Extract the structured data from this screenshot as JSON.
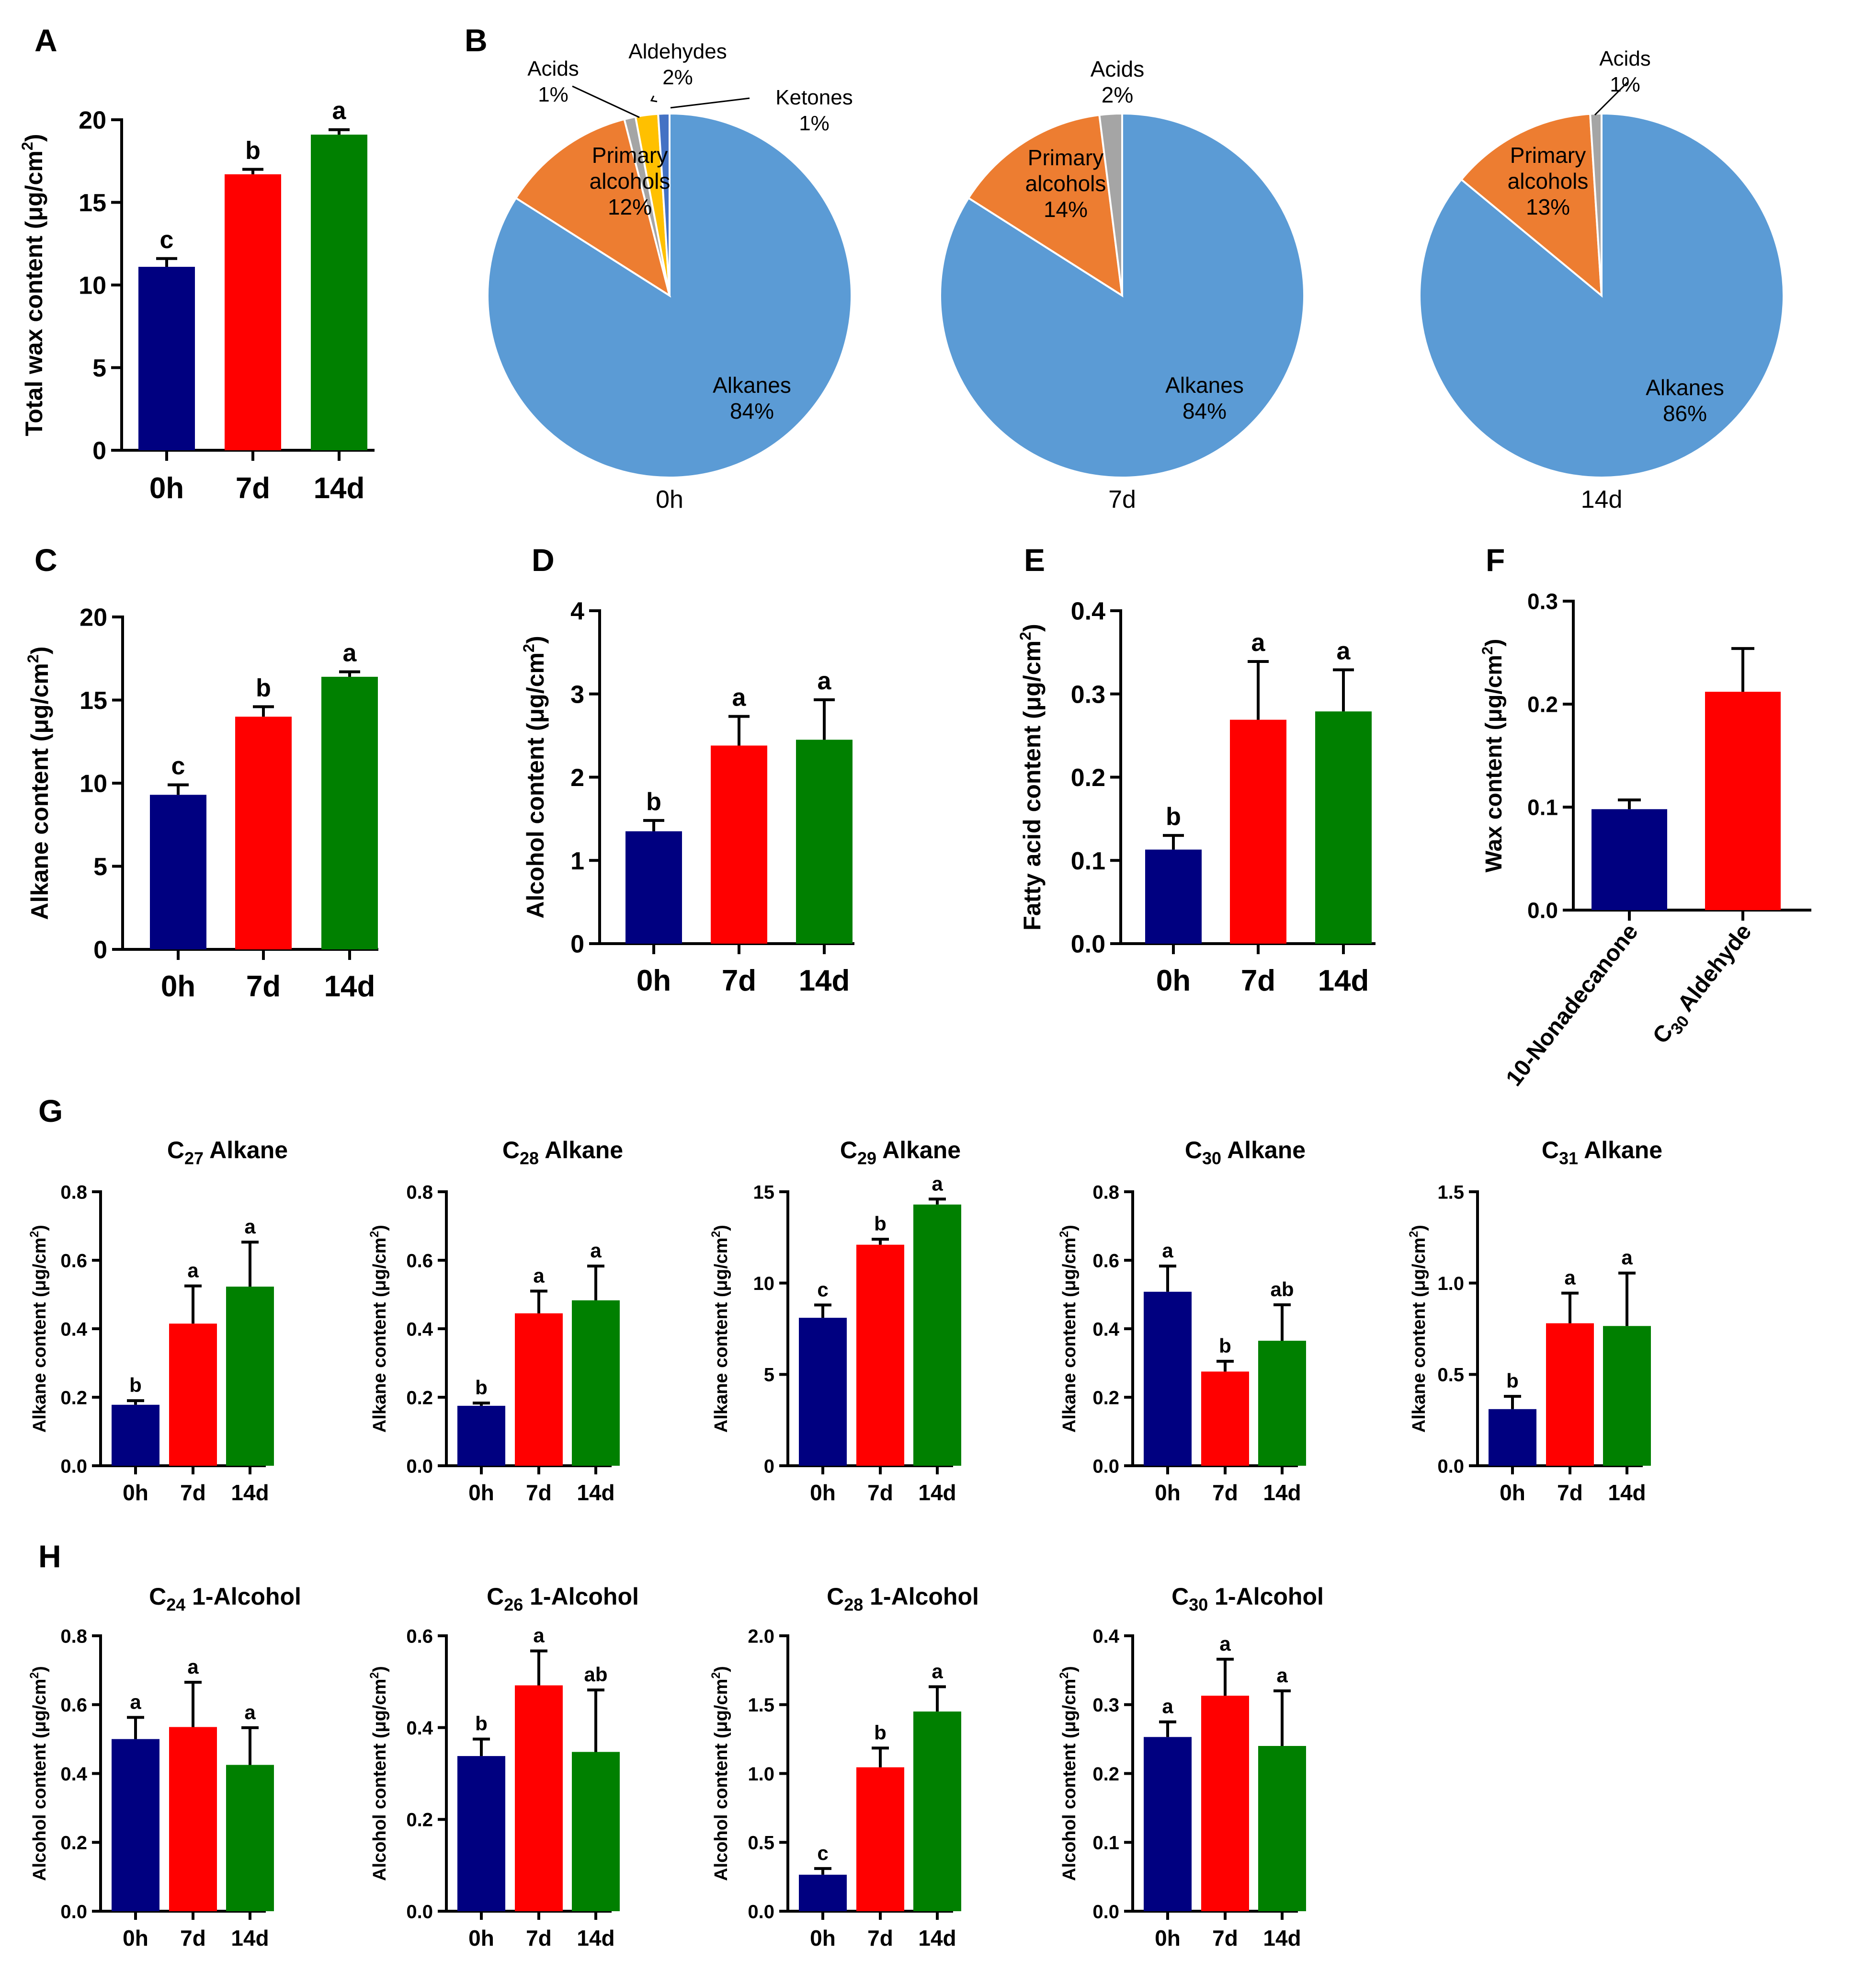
{
  "colors": {
    "c0h": "#000080",
    "c7d": "#ff0000",
    "c14d": "#008000",
    "alkanes": "#5b9bd5",
    "alcohols": "#ed7d31",
    "acids": "#a5a5a5",
    "aldehydes": "#ffc000",
    "ketones": "#4472c4",
    "axis": "#000000"
  },
  "panel_letters": [
    "A",
    "B",
    "C",
    "D",
    "E",
    "F",
    "G",
    "H"
  ],
  "chart_data": [
    {
      "id": "A",
      "type": "bar",
      "title": "",
      "ylabel": "Total wax content (μg/cm²)",
      "categories": [
        "0h",
        "7d",
        "14d"
      ],
      "values": [
        11.1,
        16.7,
        19.1
      ],
      "errors": [
        0.5,
        0.3,
        0.3
      ],
      "letters": [
        "c",
        "b",
        "a"
      ],
      "ylim": [
        0,
        20
      ],
      "yticks": [
        "0",
        "5",
        "10",
        "15",
        "20"
      ]
    },
    {
      "id": "B-0h",
      "type": "pie",
      "title": "0h",
      "slices": [
        {
          "label": "Alkanes",
          "percent": "84%",
          "value": 84
        },
        {
          "label": "Primary alcohols",
          "percent": "12%",
          "value": 12
        },
        {
          "label": "Acids",
          "percent": "1%",
          "value": 1
        },
        {
          "label": "Aldehydes",
          "percent": "2%",
          "value": 2
        },
        {
          "label": "Ketones",
          "percent": "1%",
          "value": 1
        }
      ]
    },
    {
      "id": "B-7d",
      "type": "pie",
      "title": "7d",
      "slices": [
        {
          "label": "Alkanes",
          "percent": "84%",
          "value": 84
        },
        {
          "label": "Primary alcohols",
          "percent": "14%",
          "value": 14
        },
        {
          "label": "Acids",
          "percent": "2%",
          "value": 2
        }
      ]
    },
    {
      "id": "B-14d",
      "type": "pie",
      "title": "14d",
      "slices": [
        {
          "label": "Alkanes",
          "percent": "86%",
          "value": 86
        },
        {
          "label": "Primary alcohols",
          "percent": "13%",
          "value": 13
        },
        {
          "label": "Acids",
          "percent": "1%",
          "value": 1
        }
      ]
    },
    {
      "id": "C",
      "type": "bar",
      "title": "",
      "ylabel": "Alkane content (μg/cm²)",
      "categories": [
        "0h",
        "7d",
        "14d"
      ],
      "values": [
        9.3,
        14.0,
        16.4
      ],
      "errors": [
        0.6,
        0.6,
        0.3
      ],
      "letters": [
        "c",
        "b",
        "a"
      ],
      "ylim": [
        0,
        20
      ],
      "yticks": [
        "0",
        "5",
        "10",
        "15",
        "20"
      ]
    },
    {
      "id": "D",
      "type": "bar",
      "title": "",
      "ylabel": "Alcohol content (μg/cm²)",
      "categories": [
        "0h",
        "7d",
        "14d"
      ],
      "values": [
        1.35,
        2.38,
        2.45
      ],
      "errors": [
        0.13,
        0.35,
        0.48
      ],
      "letters": [
        "b",
        "a",
        "a"
      ],
      "ylim": [
        0,
        4
      ],
      "yticks": [
        "0",
        "1",
        "2",
        "3",
        "4"
      ]
    },
    {
      "id": "E",
      "type": "bar",
      "title": "",
      "ylabel": "Fatty acid content (μg/cm²)",
      "categories": [
        "0h",
        "7d",
        "14d"
      ],
      "values": [
        0.113,
        0.269,
        0.279
      ],
      "errors": [
        0.017,
        0.07,
        0.05
      ],
      "letters": [
        "b",
        "a",
        "a"
      ],
      "ylim": [
        0,
        0.4
      ],
      "yticks": [
        "0.0",
        "0.1",
        "0.2",
        "0.3",
        "0.4"
      ]
    },
    {
      "id": "F",
      "type": "bar",
      "title": "",
      "ylabel": "Wax content (μg/cm²)",
      "categories": [
        "10-Nonadecanone",
        "C30 Aldehyde"
      ],
      "values": [
        0.098,
        0.212
      ],
      "errors": [
        0.009,
        0.042
      ],
      "letters": [
        "",
        ""
      ],
      "ylim": [
        0,
        0.3
      ],
      "yticks": [
        "0.0",
        "0.1",
        "0.2",
        "0.3"
      ]
    },
    {
      "id": "G1",
      "type": "bar",
      "title": "C27 Alkane",
      "ylabel": "Alkane content (μg/cm²)",
      "categories": [
        "0h",
        "7d",
        "14d"
      ],
      "values": [
        0.178,
        0.415,
        0.523
      ],
      "errors": [
        0.012,
        0.11,
        0.13
      ],
      "letters": [
        "b",
        "a",
        "a"
      ],
      "ylim": [
        0,
        0.8
      ],
      "yticks": [
        "0.0",
        "0.2",
        "0.4",
        "0.6",
        "0.8"
      ]
    },
    {
      "id": "G2",
      "type": "bar",
      "title": "C28 Alkane",
      "ylabel": "Alkane content (μg/cm²)",
      "categories": [
        "0h",
        "7d",
        "14d"
      ],
      "values": [
        0.175,
        0.445,
        0.483
      ],
      "errors": [
        0.008,
        0.065,
        0.1
      ],
      "letters": [
        "b",
        "a",
        "a"
      ],
      "ylim": [
        0,
        0.8
      ],
      "yticks": [
        "0.0",
        "0.2",
        "0.4",
        "0.6",
        "0.8"
      ]
    },
    {
      "id": "G3",
      "type": "bar",
      "title": "C29 Alkane",
      "ylabel": "Alkane content (μg/cm²)",
      "categories": [
        "0h",
        "7d",
        "14d"
      ],
      "values": [
        8.1,
        12.1,
        14.3
      ],
      "errors": [
        0.7,
        0.3,
        0.3
      ],
      "letters": [
        "c",
        "b",
        "a"
      ],
      "ylim": [
        0,
        15
      ],
      "yticks": [
        "0",
        "5",
        "10",
        "15"
      ]
    },
    {
      "id": "G4",
      "type": "bar",
      "title": "C30 Alkane",
      "ylabel": "Alkane content (μg/cm²)",
      "categories": [
        "0h",
        "7d",
        "14d"
      ],
      "values": [
        0.508,
        0.275,
        0.365
      ],
      "errors": [
        0.075,
        0.03,
        0.105
      ],
      "letters": [
        "a",
        "b",
        "ab"
      ],
      "ylim": [
        0,
        0.8
      ],
      "yticks": [
        "0.0",
        "0.2",
        "0.4",
        "0.6",
        "0.8"
      ]
    },
    {
      "id": "G5",
      "type": "bar",
      "title": "C31 Alkane",
      "ylabel": "Alkane content (μg/cm²)",
      "categories": [
        "0h",
        "7d",
        "14d"
      ],
      "values": [
        0.31,
        0.78,
        0.765
      ],
      "errors": [
        0.07,
        0.165,
        0.29
      ],
      "letters": [
        "b",
        "a",
        "a"
      ],
      "ylim": [
        0,
        1.5
      ],
      "yticks": [
        "0.0",
        "0.5",
        "1.0",
        "1.5"
      ]
    },
    {
      "id": "H1",
      "type": "bar",
      "title": "C24 1-Alcohol",
      "ylabel": "Alcohol content (μg/cm²)",
      "categories": [
        "0h",
        "7d",
        "14d"
      ],
      "values": [
        0.5,
        0.535,
        0.425
      ],
      "errors": [
        0.063,
        0.13,
        0.108
      ],
      "letters": [
        "a",
        "a",
        "a"
      ],
      "ylim": [
        0,
        0.8
      ],
      "yticks": [
        "0.0",
        "0.2",
        "0.4",
        "0.6",
        "0.8"
      ]
    },
    {
      "id": "H2",
      "type": "bar",
      "title": "C26 1-Alcohol",
      "ylabel": "Alcohol content (μg/cm²)",
      "categories": [
        "0h",
        "7d",
        "14d"
      ],
      "values": [
        0.338,
        0.492,
        0.347
      ],
      "errors": [
        0.037,
        0.075,
        0.135
      ],
      "letters": [
        "b",
        "a",
        "ab"
      ],
      "ylim": [
        0,
        0.6
      ],
      "yticks": [
        "0.0",
        "0.2",
        "0.4",
        "0.6"
      ]
    },
    {
      "id": "H3",
      "type": "bar",
      "title": "C28 1-Alcohol",
      "ylabel": "Alcohol content (μg/cm²)",
      "categories": [
        "0h",
        "7d",
        "14d"
      ],
      "values": [
        0.265,
        1.045,
        1.45
      ],
      "errors": [
        0.045,
        0.14,
        0.18
      ],
      "letters": [
        "c",
        "b",
        "a"
      ],
      "ylim": [
        0,
        2.0
      ],
      "yticks": [
        "0.0",
        "0.5",
        "1.0",
        "1.5",
        "2.0"
      ]
    },
    {
      "id": "H4",
      "type": "bar",
      "title": "C30 1-Alcohol",
      "ylabel": "Alcohol content (μg/cm²)",
      "categories": [
        "0h",
        "7d",
        "14d"
      ],
      "values": [
        0.253,
        0.313,
        0.24
      ],
      "errors": [
        0.022,
        0.053,
        0.08
      ],
      "letters": [
        "a",
        "a",
        "a"
      ],
      "ylim": [
        0,
        0.4
      ],
      "yticks": [
        "0.0",
        "0.1",
        "0.2",
        "0.3",
        "0.4"
      ]
    }
  ]
}
